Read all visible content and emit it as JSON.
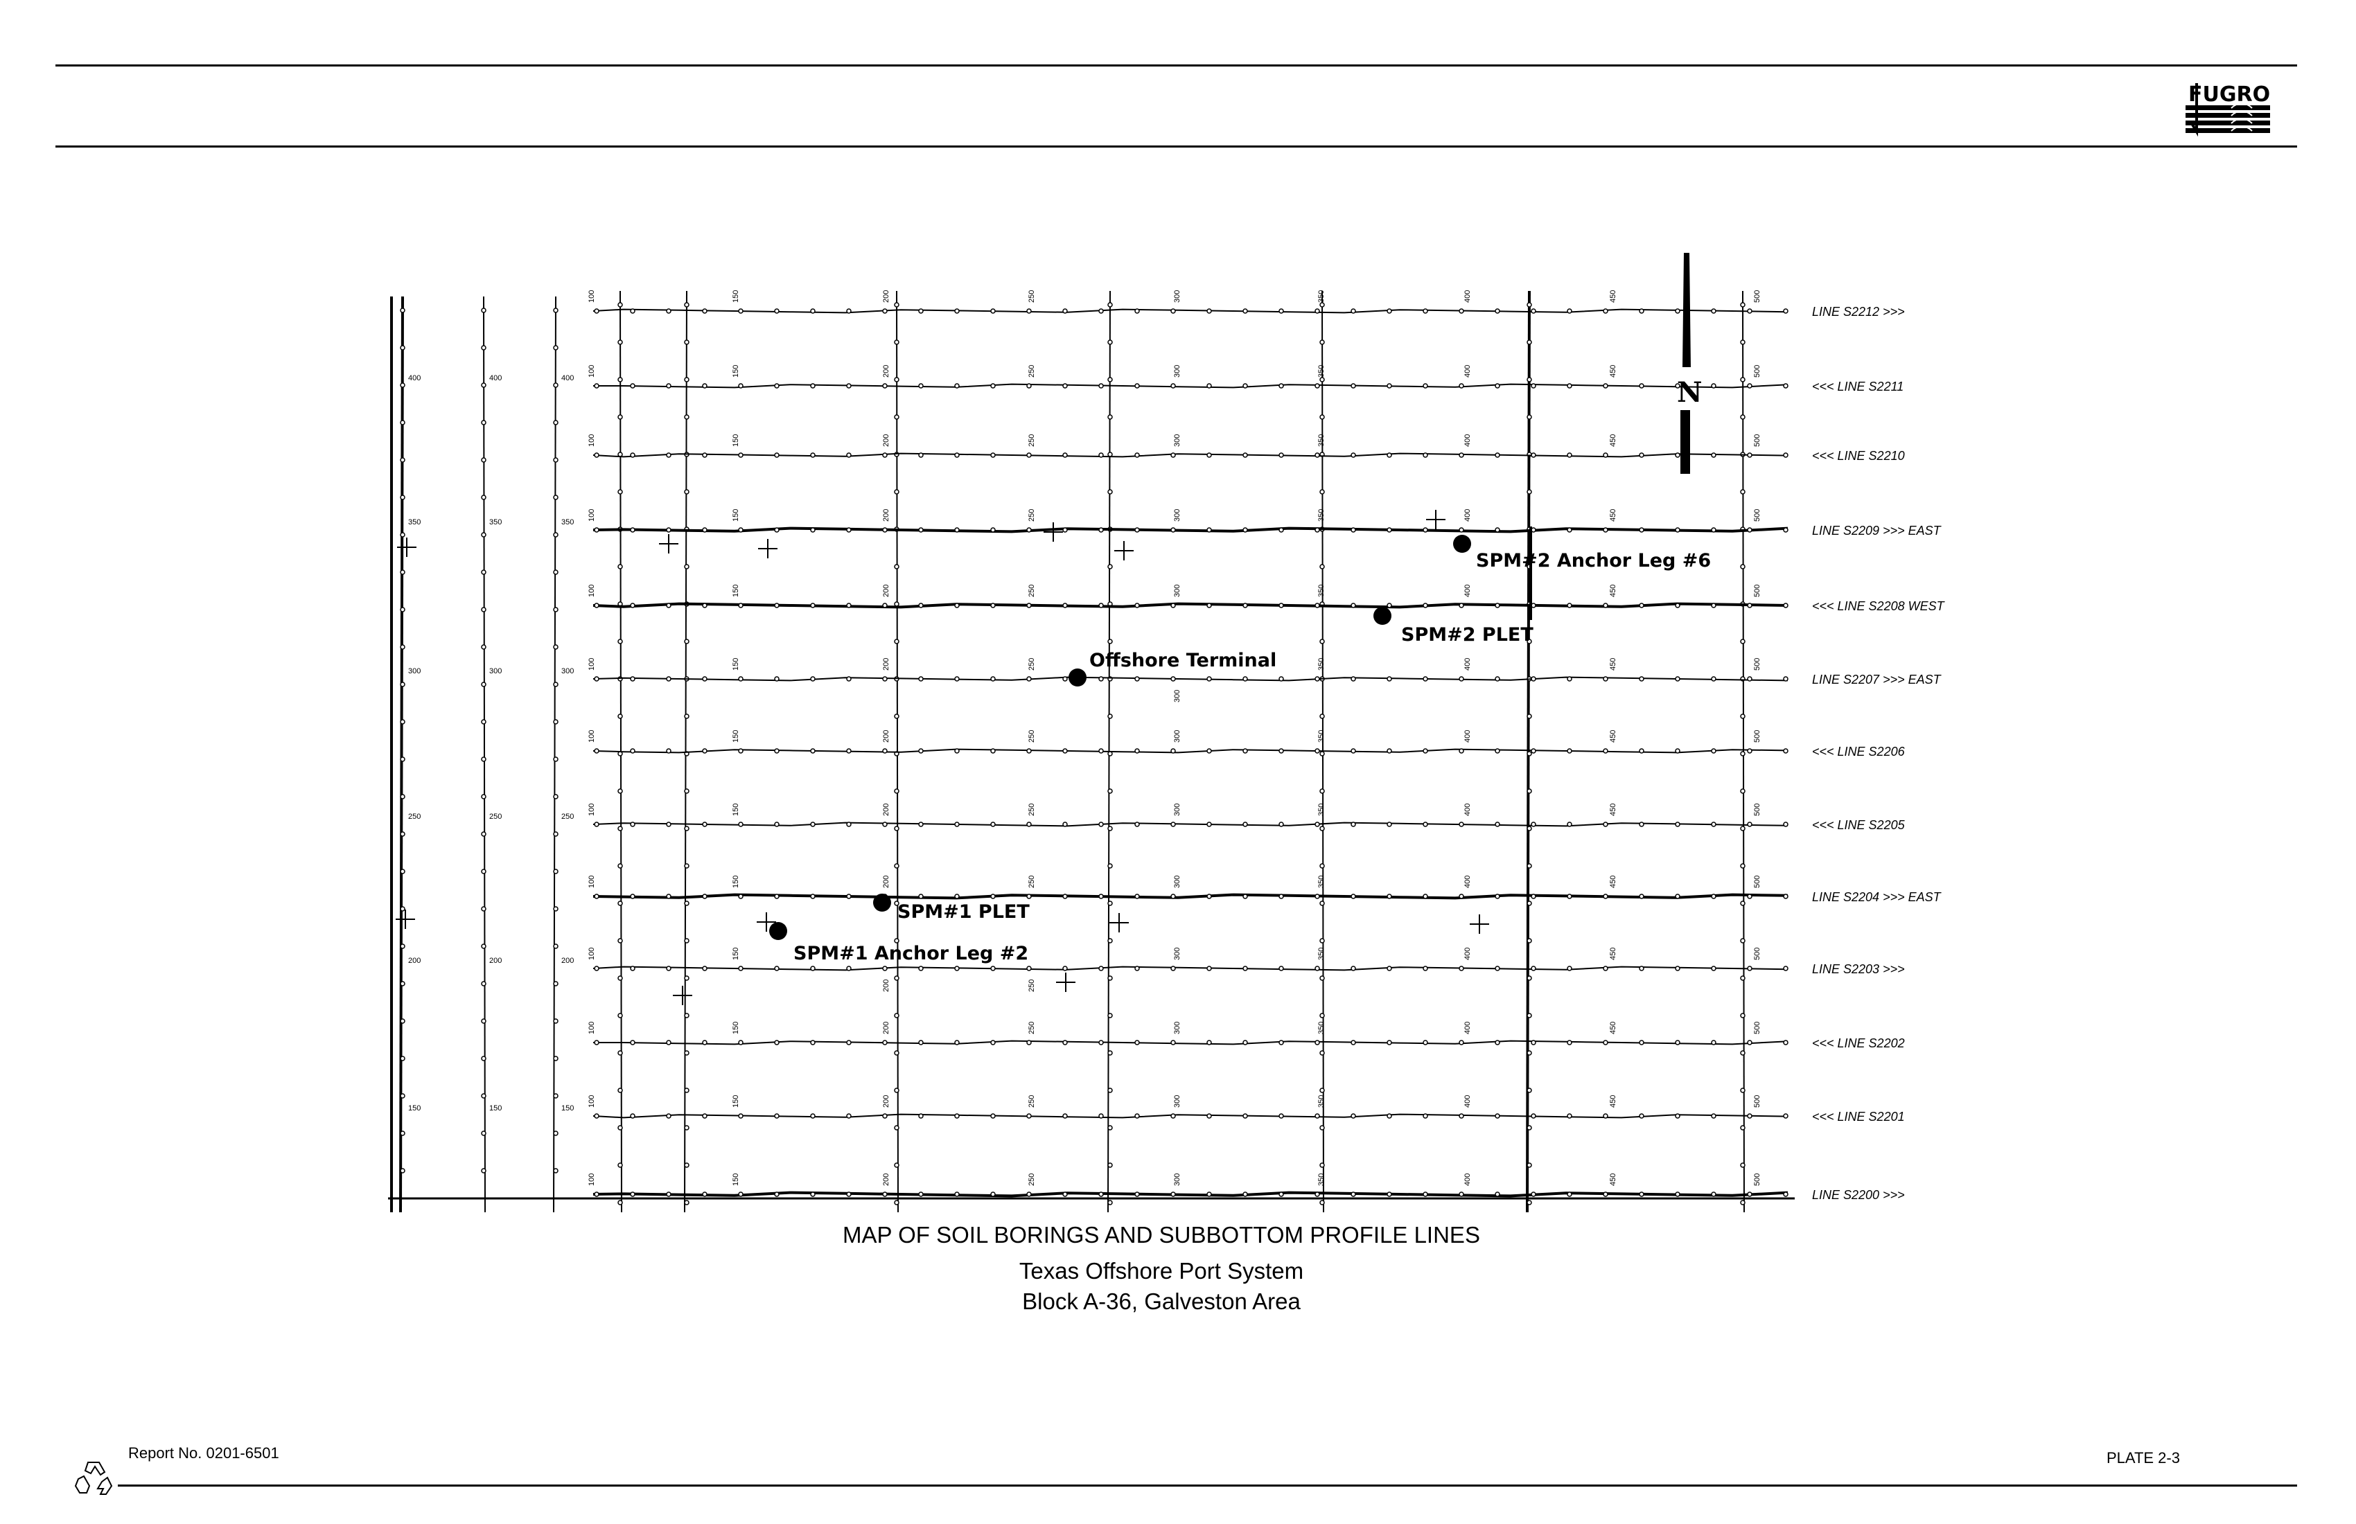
{
  "header": {
    "logo_text": "FUGRO"
  },
  "map": {
    "north_label": "N",
    "lines": [
      {
        "label": "LINE S2212 >>>",
        "major": false
      },
      {
        "label": "<<< LINE S2211",
        "major": false
      },
      {
        "label": "<<< LINE S2210",
        "major": false
      },
      {
        "label": "LINE S2209 >>>  EAST",
        "major": true
      },
      {
        "label": "<<< LINE S2208  WEST",
        "major": true
      },
      {
        "label": "LINE S2207 >>>  EAST",
        "major": false
      },
      {
        "label": "<<< LINE S2206",
        "major": false
      },
      {
        "label": "<<< LINE S2205",
        "major": false
      },
      {
        "label": "LINE S2204 >>>  EAST",
        "major": true
      },
      {
        "label": "LINE S2203 >>>",
        "major": false
      },
      {
        "label": "<<< LINE S2202",
        "major": false
      },
      {
        "label": "<<< LINE S2201",
        "major": false
      },
      {
        "label": "LINE S2200 >>>",
        "major": true
      }
    ],
    "shotpoint_labels": [
      "100",
      "150",
      "200",
      "250",
      "300",
      "350",
      "400",
      "450",
      "500"
    ],
    "crossline_labels": [
      "400",
      "350",
      "300",
      "250",
      "200",
      "150"
    ],
    "sites": [
      {
        "label": "SPM#2 Anchor Leg #6"
      },
      {
        "label": "SPM#2 PLET"
      },
      {
        "label": "Offshore Terminal"
      },
      {
        "label": "SPM#1 PLET"
      },
      {
        "label": "SPM#1 Anchor Leg #2"
      }
    ]
  },
  "caption": {
    "title": "MAP OF SOIL BORINGS AND SUBBOTTOM PROFILE LINES",
    "subtitle1": "Texas Offshore Port System",
    "subtitle2": "Block A-36, Galveston Area"
  },
  "footer": {
    "report": "Report No. 0201-6501",
    "plate": "PLATE 2-3",
    "recycle_icon": "recycle-icon"
  }
}
